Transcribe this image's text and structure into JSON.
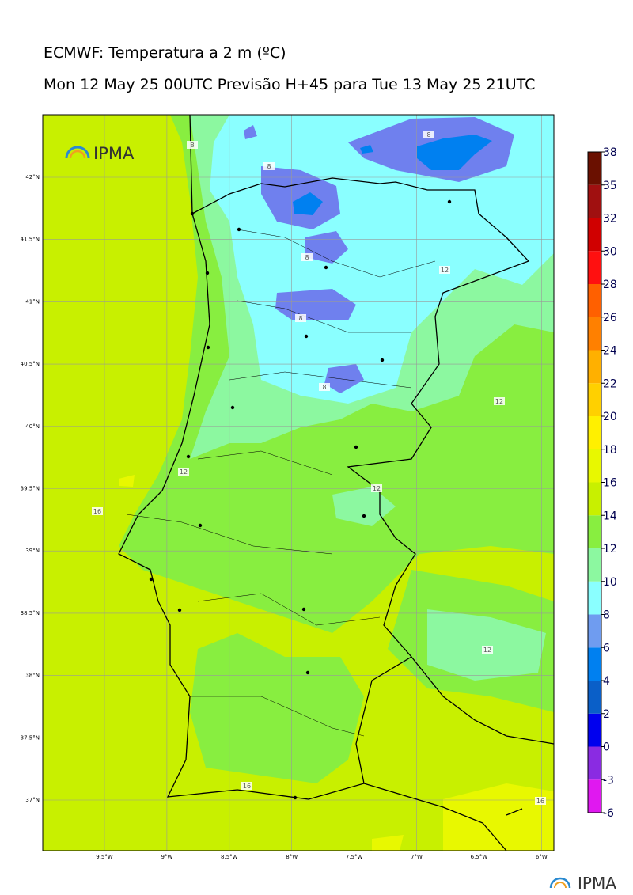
{
  "header": {
    "title": "ECMWF: Temperatura a 2 m (ºC)",
    "subtitle": "Mon 12 May 25 00UTC Previsão H+45 para Tue 13 May 25 21UTC"
  },
  "map": {
    "logo": "IPMA",
    "lat_labels": [
      "42°N",
      "41.5°N",
      "41°N",
      "40.5°N",
      "40°N",
      "39.5°N",
      "39°N",
      "38.5°N",
      "38°N",
      "37.5°N",
      "37°N"
    ],
    "lon_labels": [
      "9.5°W",
      "9°W",
      "8.5°W",
      "8°W",
      "7.5°W",
      "7°W",
      "6.5°W",
      "6°W"
    ],
    "contour_labels": [
      "8",
      "8",
      "8",
      "8",
      "8",
      "8",
      "12",
      "12",
      "12",
      "12",
      "12",
      "16",
      "16",
      "16"
    ]
  },
  "colorbar": {
    "levels": [
      -6,
      -3,
      0,
      2,
      4,
      6,
      8,
      10,
      12,
      14,
      16,
      18,
      20,
      22,
      24,
      26,
      28,
      30,
      32,
      35,
      38
    ],
    "colors": [
      "#e018f0",
      "#8a2be2",
      "#0000ee",
      "#0a5fc8",
      "#0080f0",
      "#6f9cf0",
      "#8affff",
      "#8cf8a0",
      "#88ee40",
      "#c8f000",
      "#e8f800",
      "#fff000",
      "#ffd000",
      "#ffb000",
      "#ff8000",
      "#ff6000",
      "#ff1010",
      "#d00000",
      "#a01010",
      "#6a1000"
    ]
  },
  "footer": {
    "logo": "IPMA"
  }
}
